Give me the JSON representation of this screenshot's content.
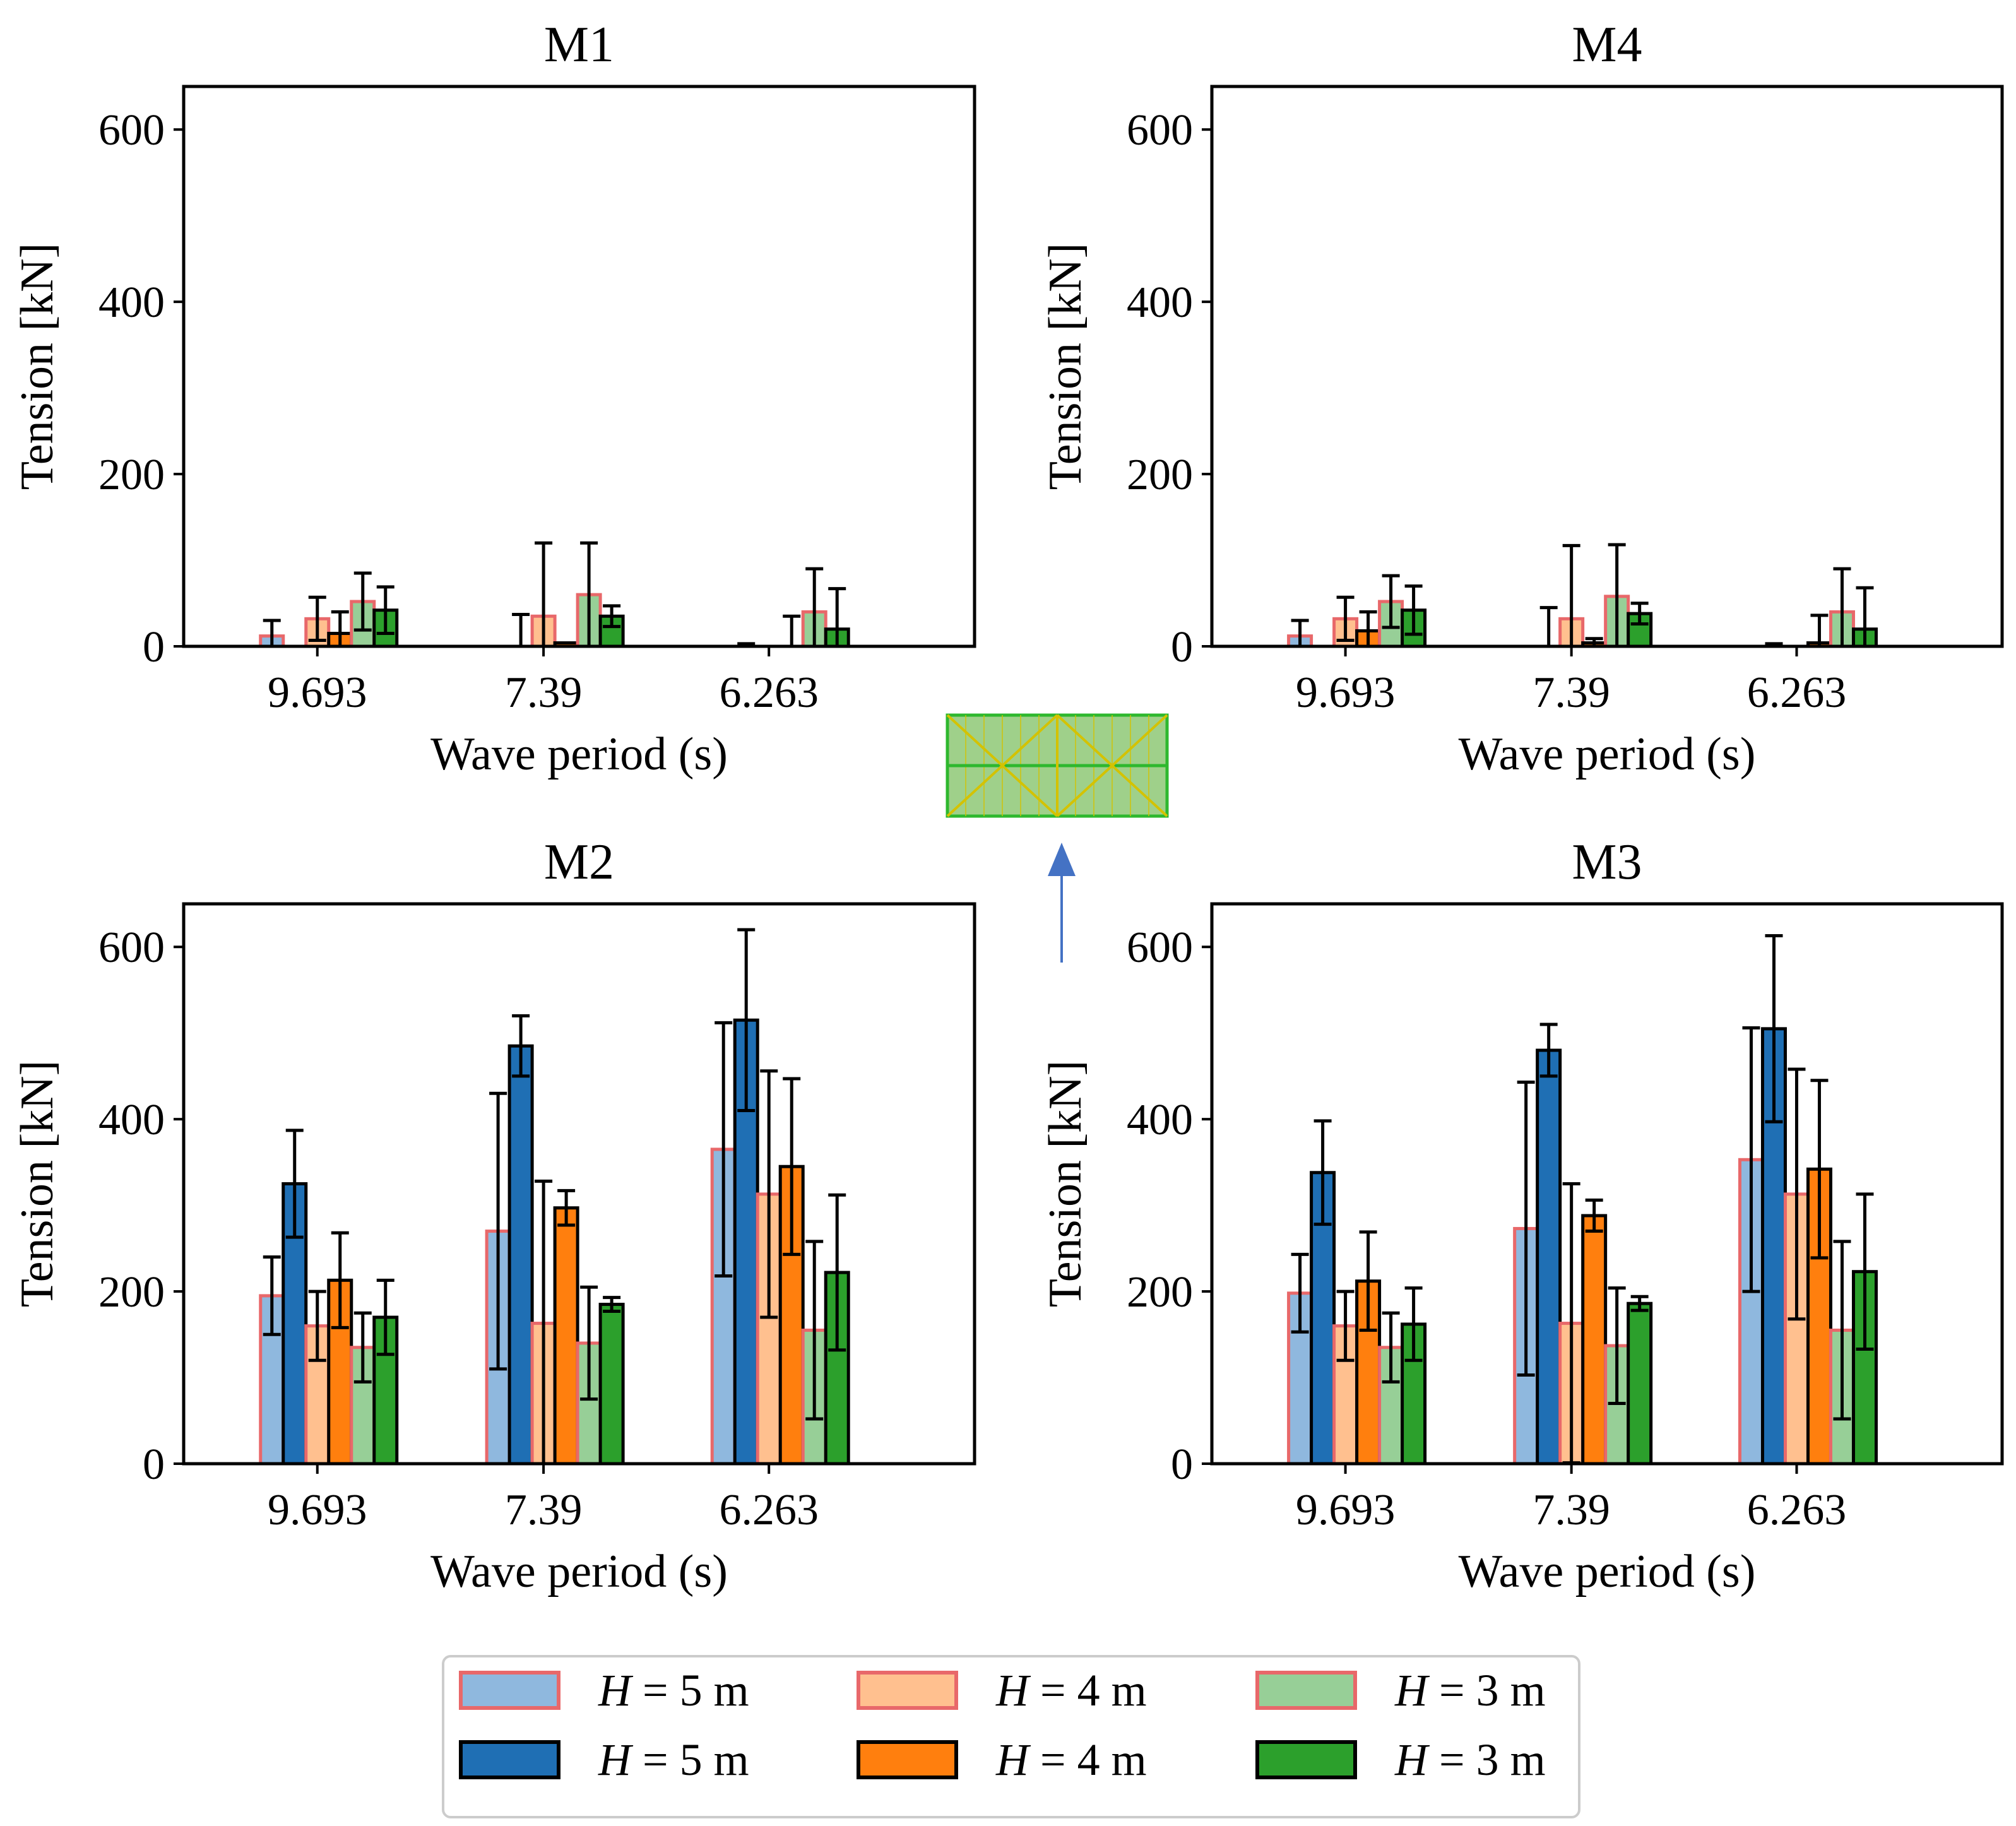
{
  "figure": {
    "legend": {
      "entries": [
        {
          "key": "h5_light",
          "label_prefix": "H",
          "label_suffix": " = 5 m",
          "fill": "#8fb8de",
          "edge": "#e8686a"
        },
        {
          "key": "h4_light",
          "label_prefix": "H",
          "label_suffix": " = 4 m",
          "fill": "#ffc08f",
          "edge": "#e8686a"
        },
        {
          "key": "h3_light",
          "label_prefix": "H",
          "label_suffix": " = 3 m",
          "fill": "#97cf97",
          "edge": "#e8686a"
        },
        {
          "key": "h5_dark",
          "label_prefix": "H",
          "label_suffix": " = 5 m",
          "fill": "#1f6fb4",
          "edge": "#000000"
        },
        {
          "key": "h4_dark",
          "label_prefix": "H",
          "label_suffix": " = 4 m",
          "fill": "#ff7f0e",
          "edge": "#000000"
        },
        {
          "key": "h3_dark",
          "label_prefix": "H",
          "label_suffix": " = 3 m",
          "fill": "#2ca02c",
          "edge": "#000000"
        }
      ]
    },
    "inset": {
      "description_icon": "platform-grid-icon",
      "arrow_color": "#4472c4",
      "fill": "#9fd08a",
      "line": "#2eb82e",
      "diag": "#d4c200"
    }
  },
  "chart_data": [
    {
      "type": "bar",
      "title": "M1",
      "xlabel": "Wave period (s)",
      "ylabel": "Tension [kN]",
      "categories": [
        "9.693",
        "7.39",
        "6.263"
      ],
      "ylim": [
        0,
        650
      ],
      "yticks": [
        0,
        200,
        400,
        600
      ],
      "series": [
        {
          "name": "H = 5 m",
          "style": "light",
          "values": [
            12,
            0,
            0
          ],
          "err": [
            18,
            0,
            0
          ]
        },
        {
          "name": "H = 5 m",
          "style": "dark",
          "values": [
            0,
            0,
            0
          ],
          "err": [
            0,
            37,
            3
          ]
        },
        {
          "name": "H = 4 m",
          "style": "light",
          "values": [
            32,
            35,
            0
          ],
          "err": [
            25,
            85,
            0
          ]
        },
        {
          "name": "H = 4 m",
          "style": "dark",
          "values": [
            15,
            4,
            0
          ],
          "err": [
            25,
            0,
            35
          ]
        },
        {
          "name": "H = 3 m",
          "style": "light",
          "values": [
            52,
            60,
            40
          ],
          "err": [
            33,
            60,
            50
          ]
        },
        {
          "name": "H = 3 m",
          "style": "dark",
          "values": [
            42,
            35,
            20
          ],
          "err": [
            27,
            12,
            47
          ]
        }
      ]
    },
    {
      "type": "bar",
      "title": "M4",
      "xlabel": "Wave period (s)",
      "ylabel": "Tension [kN]",
      "categories": [
        "9.693",
        "7.39",
        "6.263"
      ],
      "ylim": [
        0,
        650
      ],
      "yticks": [
        0,
        200,
        400,
        600
      ],
      "series": [
        {
          "name": "H = 5 m",
          "style": "light",
          "values": [
            12,
            0,
            0
          ],
          "err": [
            18,
            0,
            0
          ]
        },
        {
          "name": "H = 5 m",
          "style": "dark",
          "values": [
            0,
            0,
            0
          ],
          "err": [
            0,
            45,
            3
          ]
        },
        {
          "name": "H = 4 m",
          "style": "light",
          "values": [
            32,
            32,
            0
          ],
          "err": [
            25,
            85,
            0
          ]
        },
        {
          "name": "H = 4 m",
          "style": "dark",
          "values": [
            18,
            4,
            4
          ],
          "err": [
            22,
            5,
            32
          ]
        },
        {
          "name": "H = 3 m",
          "style": "light",
          "values": [
            52,
            58,
            40
          ],
          "err": [
            30,
            60,
            50
          ]
        },
        {
          "name": "H = 3 m",
          "style": "dark",
          "values": [
            42,
            38,
            20
          ],
          "err": [
            28,
            12,
            48
          ]
        }
      ]
    },
    {
      "type": "bar",
      "title": "M2",
      "xlabel": "Wave period (s)",
      "ylabel": "Tension [kN]",
      "categories": [
        "9.693",
        "7.39",
        "6.263"
      ],
      "ylim": [
        0,
        650
      ],
      "yticks": [
        0,
        200,
        400,
        600
      ],
      "series": [
        {
          "name": "H = 5 m",
          "style": "light",
          "values": [
            195,
            270,
            365
          ],
          "err": [
            45,
            160,
            147
          ]
        },
        {
          "name": "H = 5 m",
          "style": "dark",
          "values": [
            325,
            485,
            515
          ],
          "err": [
            62,
            35,
            105
          ]
        },
        {
          "name": "H = 4 m",
          "style": "light",
          "values": [
            160,
            163,
            313
          ],
          "err": [
            40,
            165,
            143
          ]
        },
        {
          "name": "H = 4 m",
          "style": "dark",
          "values": [
            213,
            297,
            345
          ],
          "err": [
            55,
            20,
            102
          ]
        },
        {
          "name": "H = 3 m",
          "style": "light",
          "values": [
            135,
            140,
            155
          ],
          "err": [
            40,
            65,
            103
          ]
        },
        {
          "name": "H = 3 m",
          "style": "dark",
          "values": [
            170,
            185,
            222
          ],
          "err": [
            43,
            8,
            90
          ]
        }
      ]
    },
    {
      "type": "bar",
      "title": "M3",
      "xlabel": "Wave period (s)",
      "ylabel": "Tension [kN]",
      "categories": [
        "9.693",
        "7.39",
        "6.263"
      ],
      "ylim": [
        0,
        650
      ],
      "yticks": [
        0,
        200,
        400,
        600
      ],
      "series": [
        {
          "name": "H = 5 m",
          "style": "light",
          "values": [
            198,
            273,
            353
          ],
          "err": [
            45,
            170,
            153
          ]
        },
        {
          "name": "H = 5 m",
          "style": "dark",
          "values": [
            338,
            480,
            505
          ],
          "err": [
            60,
            30,
            108
          ]
        },
        {
          "name": "H = 4 m",
          "style": "light",
          "values": [
            160,
            163,
            313
          ],
          "err": [
            40,
            162,
            145
          ]
        },
        {
          "name": "H = 4 m",
          "style": "dark",
          "values": [
            212,
            288,
            342
          ],
          "err": [
            57,
            18,
            103
          ]
        },
        {
          "name": "H = 3 m",
          "style": "light",
          "values": [
            135,
            137,
            155
          ],
          "err": [
            40,
            67,
            103
          ]
        },
        {
          "name": "H = 3 m",
          "style": "dark",
          "values": [
            162,
            186,
            223
          ],
          "err": [
            42,
            8,
            90
          ]
        }
      ]
    }
  ]
}
